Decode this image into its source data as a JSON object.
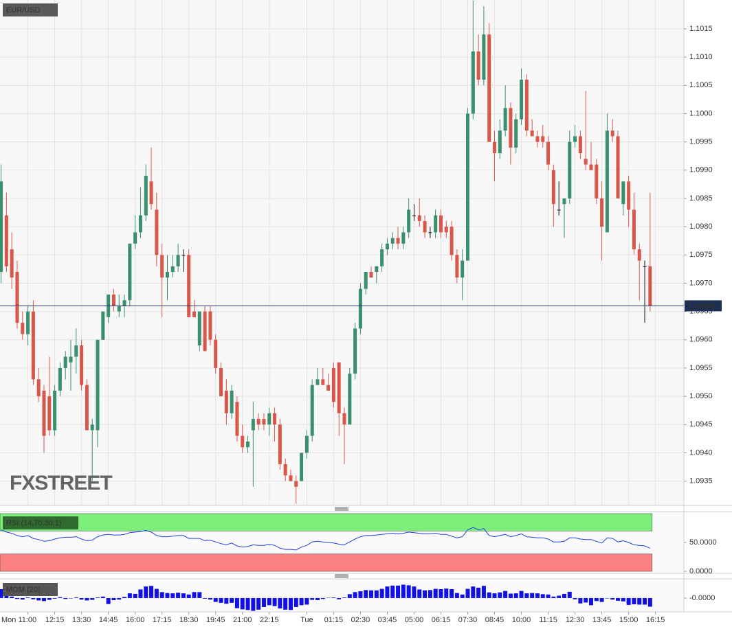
{
  "chart_data": [
    {
      "type": "candlestick",
      "title": "EUR/USD",
      "watermark": "FXSTREET",
      "open": [
        1.0972,
        1.0982,
        1.0976,
        1.0972,
        1.0963,
        1.0961,
        1.0965,
        1.0953,
        1.0951,
        1.095,
        1.0944,
        1.0951,
        1.0955,
        1.0956,
        1.0957,
        1.0959,
        1.0952,
        1.0944,
        1.0944,
        1.096,
        1.0964,
        1.0968,
        1.0965,
        1.0966,
        1.0967,
        1.0977,
        1.0979,
        1.0982,
        1.0988,
        1.0983,
        1.0975,
        1.0971,
        1.0972,
        1.0973,
        1.0975,
        1.0975,
        1.0965,
        1.0959,
        1.0965,
        1.0965,
        1.096,
        1.0955,
        1.0951,
        1.0947,
        1.0949,
        1.0943,
        1.0941,
        1.0944,
        1.0946,
        1.0946,
        1.0945,
        1.0947,
        1.0945,
        1.0938,
        1.0936,
        1.0935,
        1.0935,
        1.094,
        1.0943,
        1.0952,
        1.0953,
        1.0952,
        1.0955,
        1.0956,
        1.0947,
        1.0945,
        1.0954,
        1.0962,
        1.0969,
        1.0972,
        1.0972,
        1.0973,
        1.0976,
        1.0977,
        1.0978,
        1.0977,
        1.0979,
        1.0982,
        1.0982,
        1.0981,
        1.0979,
        1.0979,
        1.0982,
        1.098,
        1.098,
        1.0975,
        1.0971,
        1.0974,
        1.1,
        1.1011,
        1.1006,
        1.1014,
        1.0995,
        1.0993,
        1.0997,
        1.1001,
        1.0994,
        1.0999,
        1.1006,
        1.0997,
        1.0996,
        1.0996,
        1.0995,
        1.099,
        1.0983,
        1.0984,
        1.0985,
        1.0995,
        1.0996,
        1.0992,
        1.0991,
        1.0991,
        1.0985,
        1.0979,
        1.0997,
        1.0996,
        1.0984,
        1.0988,
        1.0983,
        1.0976,
        1.0973,
        1.0973
      ],
      "high": [
        1.0991,
        1.0986,
        1.0979,
        1.0974,
        1.0965,
        1.0966,
        1.0967,
        1.0955,
        1.0952,
        1.0957,
        1.0952,
        1.0956,
        1.0958,
        1.096,
        1.0962,
        1.096,
        1.0953,
        1.0946,
        1.096,
        1.0965,
        1.0968,
        1.0969,
        1.0968,
        1.0968,
        1.0977,
        1.0982,
        1.0987,
        1.0991,
        1.0994,
        1.0986,
        1.0977,
        1.0975,
        1.0975,
        1.0977,
        1.0976,
        1.0976,
        1.0967,
        1.0965,
        1.0966,
        1.0966,
        1.0961,
        1.0956,
        1.0953,
        1.0952,
        1.095,
        1.0945,
        1.0943,
        1.0949,
        1.0947,
        1.0947,
        1.0948,
        1.0948,
        1.0946,
        1.0939,
        1.0937,
        1.0936,
        1.094,
        1.0944,
        1.0953,
        1.0955,
        1.0955,
        1.0954,
        1.0956,
        1.0956,
        1.0948,
        1.0955,
        1.0963,
        1.097,
        1.0972,
        1.0973,
        1.0973,
        1.0977,
        1.0978,
        1.0979,
        1.098,
        1.098,
        1.0985,
        1.0984,
        1.0985,
        1.0982,
        1.098,
        1.0983,
        1.0983,
        1.0981,
        1.0981,
        1.0976,
        1.0976,
        1.1001,
        1.102,
        1.1014,
        1.1019,
        1.1016,
        1.0997,
        1.0999,
        1.1005,
        1.1002,
        1.1,
        1.1008,
        1.1007,
        1.0999,
        1.0997,
        1.0998,
        1.0996,
        1.0991,
        1.0988,
        1.0985,
        1.0997,
        1.0998,
        1.0997,
        1.1004,
        1.0995,
        1.0992,
        1.0988,
        1.1,
        1.0999,
        1.0997,
        1.0988,
        1.0989,
        1.0986,
        1.0977,
        1.0974,
        1.0986
      ],
      "low": [
        1.097,
        1.0972,
        1.0969,
        1.0962,
        1.096,
        1.0959,
        1.0952,
        1.0949,
        1.094,
        1.0943,
        1.0943,
        1.095,
        1.0953,
        1.0951,
        1.0954,
        1.0951,
        1.0944,
        1.0935,
        1.0941,
        1.096,
        1.0963,
        1.0965,
        1.0964,
        1.0964,
        1.0966,
        1.0976,
        1.0978,
        1.0981,
        1.0983,
        1.0973,
        1.0964,
        1.0967,
        1.0971,
        1.0972,
        1.0972,
        1.0964,
        1.0964,
        1.0958,
        1.0958,
        1.0959,
        1.0954,
        1.095,
        1.0945,
        1.0946,
        1.0942,
        1.094,
        1.094,
        1.0934,
        1.0944,
        1.0944,
        1.0943,
        1.0942,
        1.0937,
        1.0935,
        1.0935,
        1.0931,
        1.0935,
        1.0939,
        1.0942,
        1.0952,
        1.0952,
        1.0951,
        1.0948,
        1.0943,
        1.0938,
        1.0945,
        1.0953,
        1.0961,
        1.0968,
        1.0971,
        1.097,
        1.0972,
        1.0975,
        1.0976,
        1.0976,
        1.0976,
        1.0978,
        1.0981,
        1.098,
        1.0978,
        1.0978,
        1.0978,
        1.0978,
        1.0978,
        1.0974,
        1.097,
        1.0967,
        1.0974,
        1.0999,
        1.1005,
        1.1005,
        1.0995,
        1.0988,
        1.0992,
        1.0996,
        1.0991,
        1.0993,
        1.0998,
        1.0996,
        1.0996,
        1.0994,
        1.0994,
        1.099,
        1.098,
        1.0982,
        1.0978,
        1.0984,
        1.0994,
        1.0992,
        1.099,
        1.099,
        1.0984,
        1.0974,
        1.0979,
        1.0995,
        1.0985,
        1.0982,
        1.098,
        1.0975,
        1.0967,
        1.0963,
        1.0965
      ],
      "close": [
        1.0988,
        1.0973,
        1.0971,
        1.0963,
        1.0961,
        1.0965,
        1.0953,
        1.095,
        1.0943,
        1.0944,
        1.0951,
        1.0955,
        1.0957,
        1.0957,
        1.0959,
        1.0952,
        1.0944,
        1.0945,
        1.096,
        1.0965,
        1.0968,
        1.0966,
        1.0966,
        1.0967,
        1.0977,
        1.0979,
        1.0982,
        1.0989,
        1.0984,
        1.0975,
        1.0971,
        1.0972,
        1.0973,
        1.0975,
        1.0975,
        1.0964,
        1.0964,
        1.0965,
        1.0958,
        1.096,
        1.0955,
        1.095,
        1.0947,
        1.0951,
        1.0943,
        1.0941,
        1.0942,
        1.0946,
        1.0945,
        1.0945,
        1.0947,
        1.0945,
        1.0938,
        1.0936,
        1.0935,
        1.0934,
        1.094,
        1.0943,
        1.0952,
        1.0953,
        1.0952,
        1.0951,
        1.0949,
        1.0947,
        1.0945,
        1.0954,
        1.0962,
        1.0969,
        1.0972,
        1.0971,
        1.0973,
        1.0976,
        1.0977,
        1.0978,
        1.0977,
        1.0979,
        1.0983,
        1.0982,
        1.0981,
        1.0979,
        1.0979,
        1.0982,
        1.0979,
        1.0979,
        1.0975,
        1.0971,
        1.0974,
        1.1,
        1.1011,
        1.1006,
        1.1014,
        1.0995,
        1.0993,
        1.0997,
        1.1001,
        1.0994,
        1.0999,
        1.1006,
        1.0997,
        1.0996,
        1.0995,
        1.0995,
        1.0991,
        1.0984,
        1.0983,
        1.0985,
        1.0995,
        1.0996,
        1.0993,
        1.0991,
        1.099,
        1.0985,
        1.098,
        1.0997,
        1.0996,
        1.0985,
        1.0988,
        1.0983,
        1.0976,
        1.0974,
        1.0973,
        1.0966
      ],
      "up_color": "#3a8f6d",
      "down_color": "#d9574a",
      "flat_color": "#111111",
      "xlim": [
        -0.2,
        127.3
      ],
      "xticks": [
        {
          "value": 5,
          "label": "Mon 11:00"
        },
        {
          "value": 10,
          "label": "12:15"
        },
        {
          "value": 15,
          "label": "13:30"
        },
        {
          "value": 20,
          "label": "14:45"
        },
        {
          "value": 25,
          "label": "16:00"
        },
        {
          "value": 30,
          "label": "17:15"
        },
        {
          "value": 35,
          "label": "18:30"
        },
        {
          "value": 40,
          "label": "19:45"
        },
        {
          "value": 45,
          "label": "21:00"
        },
        {
          "value": 50,
          "label": "22:15"
        },
        {
          "value": 57,
          "label": "Tue"
        },
        {
          "value": 62,
          "label": "01:15"
        },
        {
          "value": 67,
          "label": "02:30"
        },
        {
          "value": 72,
          "label": "03:45"
        },
        {
          "value": 77,
          "label": "05:00"
        },
        {
          "value": 82,
          "label": "06:15"
        },
        {
          "value": 87,
          "label": "07:30"
        },
        {
          "value": 92,
          "label": "08:45"
        },
        {
          "value": 97,
          "label": "10:00"
        },
        {
          "value": 102,
          "label": "11:15"
        },
        {
          "value": 107,
          "label": "12:30"
        },
        {
          "value": 112,
          "label": "13:45"
        },
        {
          "value": 117,
          "label": "15:00"
        },
        {
          "value": 122,
          "label": "16:15"
        }
      ],
      "ylim": [
        1.09307,
        1.10201
      ],
      "yticks": [
        {
          "value": 1.0935,
          "label": "1.0935"
        },
        {
          "value": 1.094,
          "label": "1.0940"
        },
        {
          "value": 1.0945,
          "label": "1.0945"
        },
        {
          "value": 1.095,
          "label": "1.0950"
        },
        {
          "value": 1.0955,
          "label": "1.0955"
        },
        {
          "value": 1.096,
          "label": "1.0960"
        },
        {
          "value": 1.0965,
          "label": "1.0965"
        },
        {
          "value": 1.097,
          "label": "1.0970"
        },
        {
          "value": 1.0975,
          "label": "1.0975"
        },
        {
          "value": 1.098,
          "label": "1.0980"
        },
        {
          "value": 1.0985,
          "label": "1.0985"
        },
        {
          "value": 1.099,
          "label": "1.0990"
        },
        {
          "value": 1.0995,
          "label": "1.0995"
        },
        {
          "value": 1.1,
          "label": "1.1000"
        },
        {
          "value": 1.1005,
          "label": "1.1005"
        },
        {
          "value": 1.101,
          "label": "1.1010"
        },
        {
          "value": 1.1015,
          "label": "1.1015"
        }
      ],
      "grid": true,
      "last_price": {
        "value": 1.0966,
        "label": "1.09660"
      }
    },
    {
      "type": "line",
      "title": "RSI (14,70,30,1)",
      "values": [
        72,
        68,
        66,
        62,
        60,
        62,
        57,
        55,
        52,
        53,
        56,
        58,
        59,
        59,
        60,
        56,
        53,
        54,
        60,
        63,
        64,
        63,
        63,
        64,
        67,
        68,
        69,
        71,
        68,
        62,
        60,
        60,
        61,
        62,
        62,
        57,
        57,
        57,
        53,
        54,
        51,
        48,
        46,
        49,
        44,
        42,
        43,
        46,
        45,
        45,
        47,
        45,
        40,
        38,
        38,
        37,
        42,
        45,
        51,
        52,
        51,
        50,
        49,
        47,
        46,
        51,
        56,
        60,
        62,
        62,
        63,
        64,
        65,
        66,
        65,
        66,
        68,
        67,
        66,
        65,
        65,
        66,
        64,
        64,
        61,
        58,
        60,
        72,
        76,
        72,
        74,
        62,
        60,
        62,
        64,
        60,
        62,
        65,
        60,
        59,
        58,
        58,
        56,
        51,
        51,
        52,
        58,
        58,
        56,
        55,
        55,
        52,
        49,
        58,
        57,
        51,
        53,
        50,
        46,
        45,
        44,
        40
      ],
      "color": "#1f3fe0",
      "ylim": [
        0,
        100
      ],
      "yticks": [
        {
          "value": 50,
          "label": "50.0000"
        },
        {
          "value": 0,
          "label": "0.0000"
        }
      ],
      "bands": [
        {
          "from": 70,
          "to": 100,
          "color": "#7cf07a"
        },
        {
          "from": 0,
          "to": 30,
          "color": "#fb8080"
        }
      ]
    },
    {
      "type": "bar",
      "title": "MOM (20)",
      "values": [
        0.003,
        0.0025,
        0.0005,
        -0.0003,
        -0.0005,
        0.0002,
        -0.0004,
        -0.0008,
        -0.001,
        -0.0006,
        -0.0002,
        0.0003,
        -0.0003,
        -0.0001,
        0.0002,
        -0.0005,
        -0.0008,
        -0.0006,
        0.0002,
        0.0005,
        -0.002,
        -0.0007,
        -0.0005,
        0.0004,
        0.0016,
        0.0014,
        0.0029,
        0.0039,
        0.0041,
        0.0031,
        0.002,
        0.0017,
        0.0016,
        0.0018,
        0.0016,
        0.0012,
        0.002,
        0.002,
        -0.0002,
        -0.0005,
        -0.0013,
        -0.0016,
        -0.0019,
        -0.0016,
        -0.0034,
        -0.0038,
        -0.004,
        -0.0043,
        -0.0039,
        -0.003,
        -0.0024,
        -0.0027,
        -0.0035,
        -0.0039,
        -0.004,
        -0.003,
        -0.0024,
        -0.0022,
        -0.0006,
        -0.0007,
        -0.0003,
        0.0001,
        0.0002,
        -0.0004,
        0.0002,
        0.0013,
        0.002,
        0.0023,
        0.0027,
        0.0026,
        0.0026,
        0.0031,
        0.0039,
        0.0042,
        0.0042,
        0.0045,
        0.0043,
        0.0039,
        0.0029,
        0.0026,
        0.0027,
        0.0031,
        0.003,
        0.0032,
        0.003,
        0.0017,
        0.0012,
        0.0031,
        0.0039,
        0.0035,
        0.0041,
        0.0019,
        0.0016,
        0.0019,
        0.0024,
        0.0015,
        0.0016,
        0.0024,
        0.0016,
        0.0017,
        0.0016,
        0.0013,
        0.0012,
        0.0005,
        0.0008,
        0.0014,
        0.0021,
        -0.0004,
        -0.0018,
        -0.0015,
        -0.0024,
        -0.001,
        -0.0013,
        0,
        -0.0005,
        -0.0009,
        -0.0011,
        -0.0023,
        -0.0021,
        -0.0022,
        -0.0022,
        -0.0029
      ],
      "color": "#1111e6",
      "ylim": [
        -0.0044,
        0.006
      ],
      "yticks": [
        {
          "value": 0,
          "label": "-0.0000"
        }
      ]
    }
  ]
}
